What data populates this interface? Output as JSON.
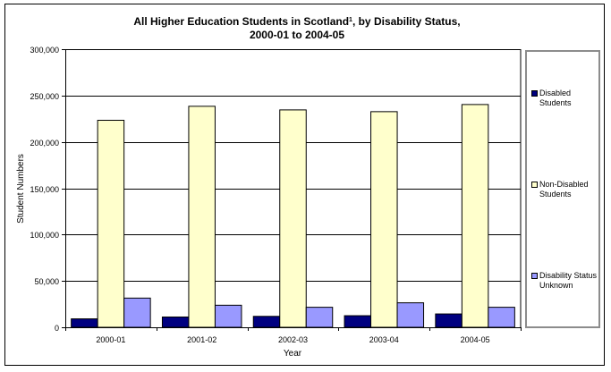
{
  "chart_data": {
    "type": "bar",
    "title_main": "All Higher Education Students in Scotland",
    "title_sup": "1",
    "title_rest": ", by Disability Status,",
    "title_line2": "2000-01 to 2004-05",
    "xlabel": "Year",
    "ylabel": "Student Numbers",
    "ylim": [
      0,
      300000
    ],
    "yticks": [
      0,
      50000,
      100000,
      150000,
      200000,
      250000,
      300000
    ],
    "ytick_labels": [
      "0",
      "50,000",
      "100,000",
      "150,000",
      "200,000",
      "250,000",
      "300,000"
    ],
    "grid": true,
    "legend_position": "right",
    "categories": [
      "2000-01",
      "2001-02",
      "2002-03",
      "2003-04",
      "2004-05"
    ],
    "series": [
      {
        "name": "Disabled Students",
        "color": "#000080",
        "values": [
          9100,
          11100,
          11800,
          12500,
          14400
        ]
      },
      {
        "name": "Non-Disabled Students",
        "color": "#ffffcc",
        "values": [
          223300,
          238400,
          234500,
          232600,
          240300
        ]
      },
      {
        "name": "Disability Status Unknown",
        "color": "#9999ff",
        "values": [
          31500,
          23800,
          21600,
          26400,
          21600
        ]
      }
    ]
  }
}
